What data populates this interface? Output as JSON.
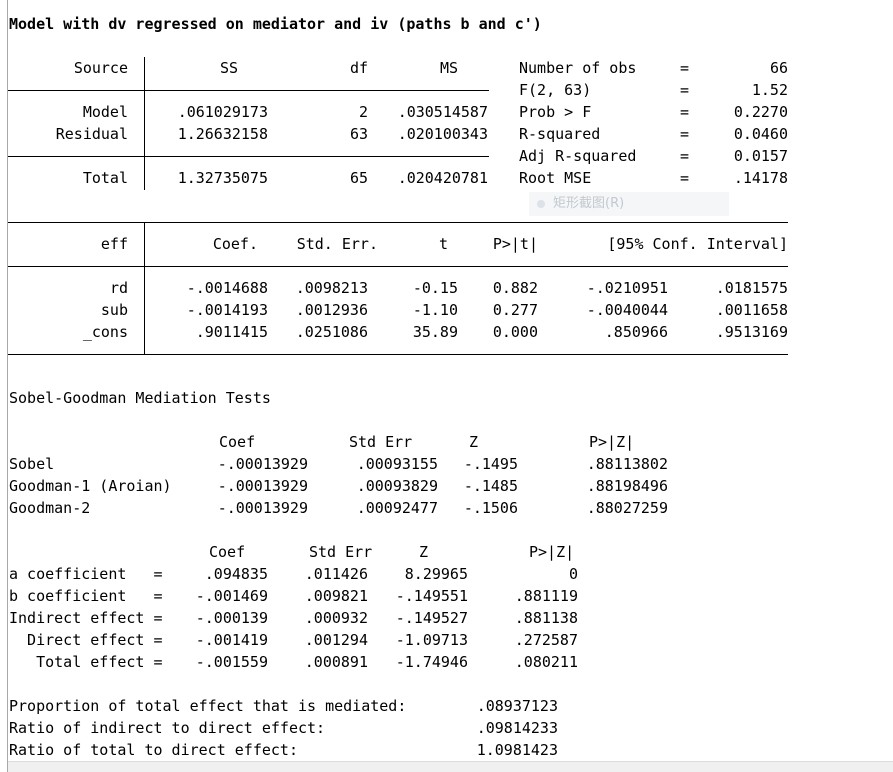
{
  "title": "Model with dv regressed on mediator and iv (paths b and c')",
  "anova": {
    "headers": [
      "Source",
      "SS",
      "df",
      "MS"
    ],
    "rows": [
      [
        "Model",
        ".061029173",
        "2",
        ".030514587"
      ],
      [
        "Residual",
        "1.26632158",
        "63",
        ".020100343"
      ],
      [
        "Total",
        "1.32735075",
        "65",
        ".020420781"
      ]
    ]
  },
  "stats": [
    [
      "Number of obs",
      "=",
      "66"
    ],
    [
      "F(2, 63)",
      "=",
      "1.52"
    ],
    [
      "Prob > F",
      "=",
      "0.2270"
    ],
    [
      "R-squared",
      "=",
      "0.0460"
    ],
    [
      "Adj R-squared",
      "=",
      "0.0157"
    ],
    [
      "Root MSE",
      "=",
      ".14178"
    ]
  ],
  "ghost_menu_label": "矩形截图(R)",
  "coef": {
    "headers": [
      "eff",
      "Coef.",
      "Std. Err.",
      "t",
      "P>|t|",
      "[95% Conf. Interval]"
    ],
    "rows": [
      [
        "rd",
        "-.0014688",
        ".0098213",
        "-0.15",
        "0.882",
        "-.0210951",
        ".0181575"
      ],
      [
        "sub",
        "-.0014193",
        ".0012936",
        "-1.10",
        "0.277",
        "-.0040044",
        ".0011658"
      ],
      [
        "_cons",
        ".9011415",
        ".0251086",
        "35.89",
        "0.000",
        ".850966",
        ".9513169"
      ]
    ]
  },
  "sobel": {
    "title": "Sobel-Goodman Mediation Tests",
    "headers": [
      "Coef",
      "Std Err",
      "Z",
      "P>|Z|"
    ],
    "rows": [
      [
        "Sobel",
        "-.00013929",
        ".00093155",
        "-.1495",
        ".88113802"
      ],
      [
        "Goodman-1 (Aroian)",
        "-.00013929",
        ".00093829",
        "-.1485",
        ".88198496"
      ],
      [
        "Goodman-2",
        "-.00013929",
        ".00092477",
        "-.1506",
        ".88027259"
      ]
    ]
  },
  "effects": {
    "headers": [
      "Coef",
      "Std Err",
      "Z",
      "P>|Z|"
    ],
    "rows": [
      [
        "a coefficient   =",
        ".094835",
        ".011426",
        "8.29965",
        "0"
      ],
      [
        "b coefficient   =",
        "-.001469",
        ".009821",
        "-.149551",
        ".881119"
      ],
      [
        "Indirect effect =",
        "-.000139",
        ".000932",
        "-.149527",
        ".881138"
      ],
      [
        "  Direct effect =",
        "-.001419",
        ".001294",
        "-1.09713",
        ".272587"
      ],
      [
        "   Total effect =",
        "-.001559",
        ".000891",
        "-1.74946",
        ".080211"
      ]
    ]
  },
  "ratios": [
    [
      "Proportion of total effect that is mediated:",
      ".08937123"
    ],
    [
      "Ratio of indirect to direct effect:",
      ".09814233"
    ],
    [
      "Ratio of total to direct effect:",
      "1.0981423"
    ]
  ]
}
